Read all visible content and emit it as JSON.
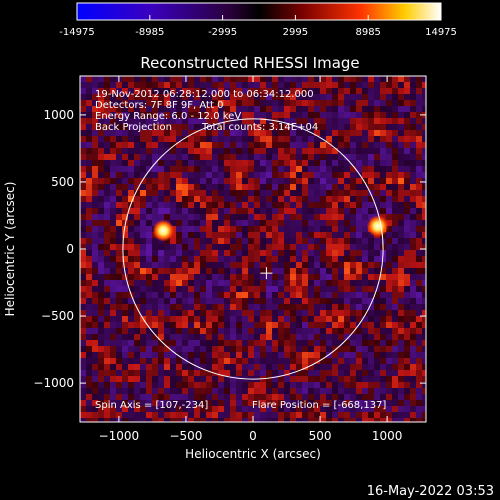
{
  "colorbar": {
    "tick_labels": [
      "-14975",
      "-8985",
      "-2995",
      "2995",
      "8985",
      "14975"
    ],
    "range": [
      -14975,
      14975
    ],
    "colors": [
      "#0000ff",
      "#4b0082",
      "#000000",
      "#7a0000",
      "#ff3300",
      "#ffcc00",
      "#ffffff"
    ]
  },
  "chart_data": {
    "type": "heatmap",
    "title": "Reconstructed RHESSI Image",
    "xlabel": "Heliocentric X (arcsec)",
    "ylabel": "Heliocentric Y (arcsec)",
    "xlim": [
      -1290,
      1290
    ],
    "ylim": [
      -1290,
      1290
    ],
    "x_ticks": [
      -1000,
      -500,
      0,
      500,
      1000
    ],
    "x_tick_labels": [
      "−1000",
      "−500",
      "0",
      "500",
      "1000"
    ],
    "y_ticks": [
      -1000,
      -500,
      0,
      500,
      1000
    ],
    "y_tick_labels": [
      "−1000",
      "−500",
      "0",
      "500",
      "1000"
    ],
    "grid": false,
    "solar_limb": {
      "center": [
        0,
        0
      ],
      "radius": 970
    },
    "sun_center_marker": {
      "x": 100,
      "y": -180
    },
    "sources": [
      {
        "x": -668,
        "y": 137
      },
      {
        "x": 930,
        "y": 170
      }
    ],
    "annotations": [
      "19-Nov-2012 06:28:12.000 to 06:34:12.000",
      "Detectors: 7F 8F 9F, Att 0",
      "Energy Range: 6.0 - 12.0 keV",
      "Back Projection",
      "Total counts: 3.14E+04",
      "Spin Axis = [107,-234]",
      "Flare Position = [-668,137]"
    ]
  },
  "footer": {
    "timestamp": "16-May-2022 03:53"
  }
}
